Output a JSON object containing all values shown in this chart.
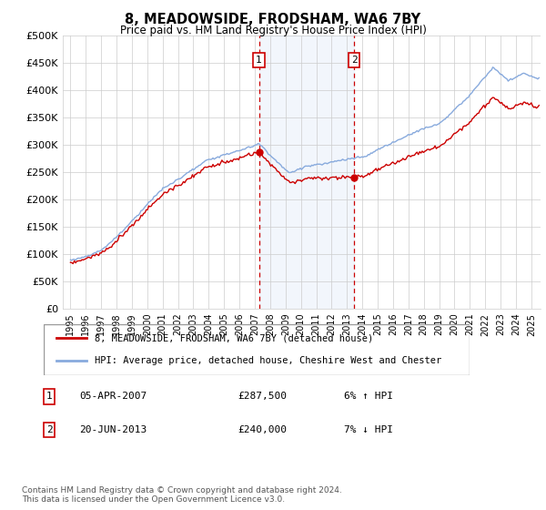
{
  "title": "8, MEADOWSIDE, FRODSHAM, WA6 7BY",
  "subtitle": "Price paid vs. HM Land Registry's House Price Index (HPI)",
  "ylabel_ticks": [
    "£0",
    "£50K",
    "£100K",
    "£150K",
    "£200K",
    "£250K",
    "£300K",
    "£350K",
    "£400K",
    "£450K",
    "£500K"
  ],
  "ytick_values": [
    0,
    50000,
    100000,
    150000,
    200000,
    250000,
    300000,
    350000,
    400000,
    450000,
    500000
  ],
  "xlim_start": 1994.5,
  "xlim_end": 2025.6,
  "ylim": [
    0,
    500000
  ],
  "sale1_x": 2007.27,
  "sale1_y": 287500,
  "sale2_x": 2013.47,
  "sale2_y": 240000,
  "sale1_label": "1",
  "sale2_label": "2",
  "legend_property": "8, MEADOWSIDE, FRODSHAM, WA6 7BY (detached house)",
  "legend_hpi": "HPI: Average price, detached house, Cheshire West and Chester",
  "table_row1": [
    "1",
    "05-APR-2007",
    "£287,500",
    "6% ↑ HPI"
  ],
  "table_row2": [
    "2",
    "20-JUN-2013",
    "£240,000",
    "7% ↓ HPI"
  ],
  "footnote": "Contains HM Land Registry data © Crown copyright and database right 2024.\nThis data is licensed under the Open Government Licence v3.0.",
  "color_property": "#cc0000",
  "color_hpi": "#88aadd",
  "color_shade": "#ccdff5",
  "background_color": "#ffffff",
  "grid_color": "#cccccc"
}
